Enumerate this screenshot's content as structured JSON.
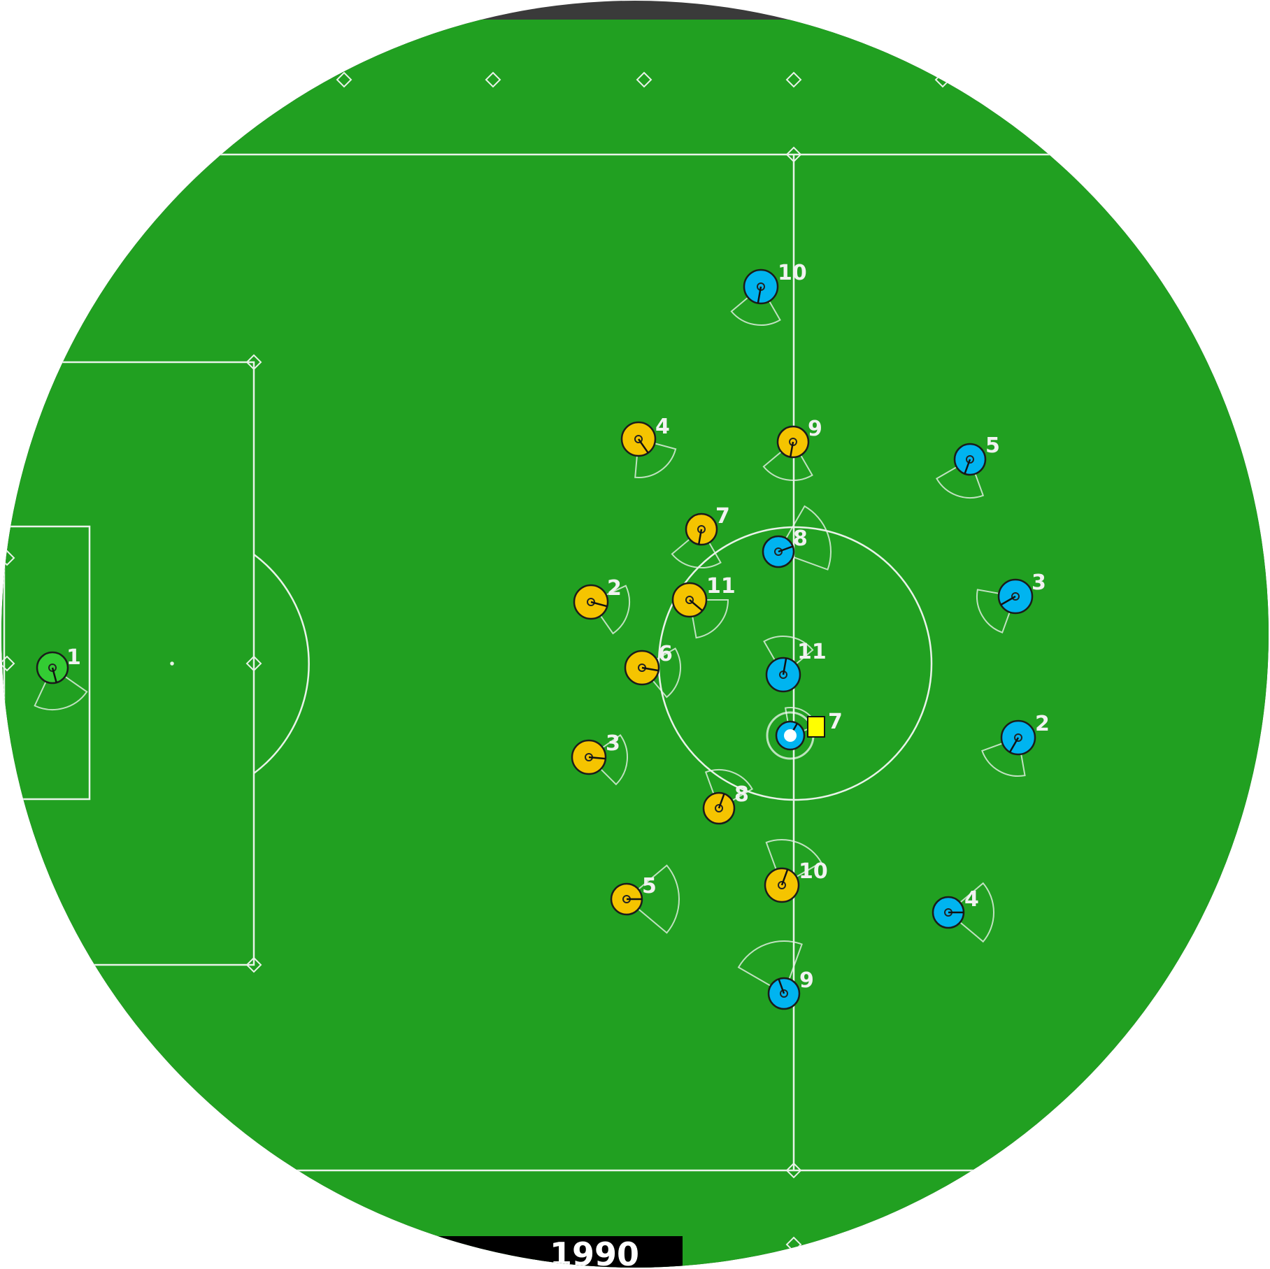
{
  "colors": {
    "pitch": "#21a021",
    "line": "#e9f3e9",
    "yellow_team": "#f5c400",
    "blue_team": "#00b4f0",
    "goalie": "#33cc33",
    "ball_marker": "#ffff00",
    "outside": "#3a3a3a",
    "status_bar": "#000000"
  },
  "status_bar": {
    "cycle": "1990"
  },
  "players": [
    {
      "team": "goalie",
      "number": "1"
    },
    {
      "team": "yellow",
      "number": "4"
    },
    {
      "team": "yellow",
      "number": "9"
    },
    {
      "team": "yellow",
      "number": "7"
    },
    {
      "team": "yellow",
      "number": "2"
    },
    {
      "team": "yellow",
      "number": "11"
    },
    {
      "team": "yellow",
      "number": "6"
    },
    {
      "team": "yellow",
      "number": "3"
    },
    {
      "team": "yellow",
      "number": "8"
    },
    {
      "team": "yellow",
      "number": "5"
    },
    {
      "team": "yellow",
      "number": "10"
    },
    {
      "team": "blue",
      "number": "10"
    },
    {
      "team": "blue",
      "number": "5"
    },
    {
      "team": "blue",
      "number": "8"
    },
    {
      "team": "blue",
      "number": "3"
    },
    {
      "team": "blue",
      "number": "11"
    },
    {
      "team": "blue",
      "number": "2"
    },
    {
      "team": "blue",
      "number": "4"
    },
    {
      "team": "blue",
      "number": "9"
    },
    {
      "team": "blue",
      "number": "7"
    }
  ]
}
